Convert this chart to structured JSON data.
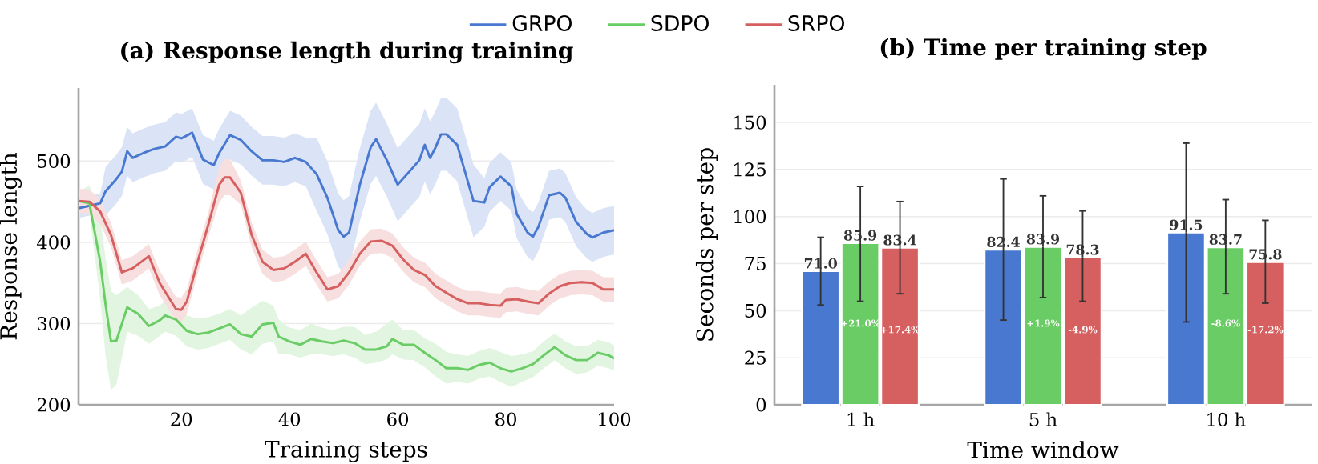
{
  "chart_data": [
    {
      "type": "line",
      "title": "(a) Response length during training",
      "xlabel": "Training steps",
      "ylabel": "Response length",
      "xlim": [
        1,
        100
      ],
      "ylim": [
        200,
        590
      ],
      "xticks": [
        20,
        40,
        60,
        80,
        100
      ],
      "yticks": [
        200,
        300,
        400,
        500
      ],
      "grid": "y",
      "legend": "top",
      "series": [
        {
          "name": "GRPO",
          "color": "#4878d0",
          "x": [
            1,
            3,
            5,
            6,
            8,
            9,
            10,
            11,
            13,
            15,
            17,
            19,
            20,
            22,
            24,
            26,
            27,
            29,
            31,
            33,
            35,
            37,
            39,
            41,
            43,
            45,
            47,
            49,
            50,
            51,
            53,
            55,
            56,
            58,
            60,
            62,
            64,
            65,
            66,
            67,
            68,
            69,
            71,
            73,
            74,
            76,
            77,
            79,
            81,
            82,
            84,
            85,
            86,
            88,
            90,
            91,
            93,
            95,
            96,
            98,
            100
          ],
          "values": [
            442,
            445,
            448,
            463,
            478,
            487,
            512,
            504,
            510,
            515,
            518,
            530,
            528,
            535,
            502,
            495,
            510,
            532,
            526,
            512,
            501,
            501,
            499,
            504,
            499,
            484,
            455,
            415,
            407,
            412,
            471,
            517,
            527,
            501,
            471,
            486,
            501,
            520,
            504,
            517,
            533,
            533,
            520,
            474,
            451,
            449,
            468,
            481,
            469,
            435,
            412,
            407,
            419,
            458,
            461,
            455,
            425,
            410,
            406,
            412,
            415
          ],
          "lower": [
            430,
            433,
            436,
            433,
            448,
            457,
            482,
            474,
            480,
            485,
            488,
            500,
            498,
            505,
            472,
            465,
            480,
            502,
            496,
            482,
            471,
            471,
            469,
            474,
            469,
            439,
            410,
            370,
            362,
            367,
            426,
            472,
            482,
            456,
            426,
            441,
            456,
            475,
            459,
            472,
            488,
            488,
            475,
            429,
            406,
            419,
            438,
            451,
            439,
            405,
            382,
            377,
            389,
            428,
            431,
            425,
            395,
            380,
            376,
            382,
            385
          ],
          "upper": [
            454,
            457,
            460,
            493,
            508,
            517,
            542,
            534,
            540,
            545,
            548,
            560,
            558,
            565,
            532,
            525,
            540,
            562,
            556,
            542,
            531,
            531,
            529,
            534,
            529,
            529,
            500,
            460,
            452,
            457,
            516,
            562,
            572,
            546,
            516,
            531,
            546,
            565,
            549,
            562,
            578,
            578,
            565,
            519,
            496,
            479,
            498,
            511,
            499,
            465,
            442,
            437,
            449,
            488,
            491,
            485,
            455,
            440,
            436,
            442,
            445
          ]
        },
        {
          "name": "SDPO",
          "color": "#6acc64",
          "x": [
            1,
            3,
            5,
            6,
            7,
            8,
            10,
            12,
            14,
            16,
            17,
            19,
            21,
            23,
            25,
            27,
            29,
            31,
            33,
            35,
            37,
            38,
            40,
            42,
            44,
            46,
            48,
            50,
            52,
            54,
            56,
            58,
            59,
            61,
            63,
            65,
            67,
            69,
            71,
            73,
            75,
            77,
            79,
            81,
            83,
            85,
            87,
            89,
            91,
            93,
            95,
            97,
            99,
            100
          ],
          "values": [
            451,
            448,
            376,
            323,
            278,
            279,
            320,
            312,
            297,
            304,
            310,
            305,
            291,
            287,
            289,
            294,
            299,
            287,
            284,
            299,
            301,
            284,
            278,
            274,
            281,
            278,
            276,
            279,
            276,
            268,
            268,
            272,
            281,
            274,
            274,
            264,
            255,
            245,
            245,
            243,
            249,
            252,
            245,
            241,
            245,
            250,
            261,
            271,
            261,
            255,
            255,
            264,
            261,
            257
          ],
          "lower": [
            440,
            437,
            330,
            260,
            218,
            225,
            290,
            285,
            275,
            285,
            290,
            285,
            272,
            268,
            270,
            275,
            280,
            268,
            262,
            275,
            278,
            262,
            262,
            258,
            262,
            262,
            260,
            262,
            258,
            250,
            252,
            256,
            262,
            256,
            255,
            246,
            235,
            226,
            228,
            226,
            232,
            235,
            228,
            222,
            228,
            234,
            245,
            255,
            245,
            238,
            240,
            248,
            245,
            242
          ],
          "upper": [
            462,
            470,
            430,
            380,
            340,
            335,
            345,
            335,
            318,
            322,
            328,
            325,
            310,
            306,
            308,
            312,
            318,
            310,
            320,
            328,
            322,
            305,
            295,
            292,
            300,
            295,
            292,
            296,
            296,
            286,
            290,
            300,
            305,
            292,
            292,
            282,
            275,
            265,
            262,
            260,
            266,
            270,
            265,
            260,
            262,
            266,
            278,
            288,
            278,
            272,
            272,
            280,
            277,
            273
          ]
        },
        {
          "name": "SRPO",
          "color": "#d65f5f",
          "x": [
            1,
            3,
            5,
            7,
            9,
            11,
            14,
            16,
            19,
            20,
            21,
            23,
            25,
            27,
            28,
            29,
            31,
            33,
            35,
            37,
            39,
            41,
            43,
            45,
            47,
            49,
            51,
            53,
            55,
            57,
            59,
            61,
            63,
            65,
            67,
            69,
            71,
            73,
            75,
            77,
            79,
            80,
            82,
            84,
            86,
            88,
            90,
            92,
            94,
            96,
            98,
            100
          ],
          "values": [
            451,
            450,
            438,
            409,
            363,
            368,
            383,
            350,
            318,
            317,
            327,
            376,
            422,
            471,
            480,
            480,
            461,
            409,
            376,
            366,
            368,
            376,
            386,
            363,
            342,
            346,
            363,
            386,
            401,
            402,
            396,
            379,
            366,
            360,
            346,
            338,
            330,
            325,
            325,
            323,
            322,
            329,
            330,
            327,
            325,
            337,
            346,
            350,
            351,
            350,
            342,
            342
          ],
          "lower": [
            436,
            435,
            423,
            394,
            348,
            353,
            368,
            335,
            303,
            302,
            312,
            361,
            407,
            449,
            458,
            458,
            446,
            394,
            361,
            351,
            353,
            361,
            371,
            348,
            327,
            331,
            348,
            371,
            386,
            387,
            381,
            364,
            351,
            345,
            331,
            323,
            315,
            310,
            310,
            308,
            307,
            314,
            315,
            312,
            310,
            322,
            331,
            335,
            336,
            335,
            327,
            327
          ],
          "upper": [
            466,
            465,
            453,
            424,
            378,
            383,
            398,
            365,
            333,
            332,
            342,
            391,
            437,
            493,
            502,
            502,
            476,
            424,
            391,
            381,
            383,
            391,
            401,
            378,
            357,
            361,
            378,
            401,
            416,
            417,
            411,
            394,
            381,
            375,
            361,
            353,
            345,
            340,
            340,
            338,
            337,
            344,
            345,
            342,
            340,
            352,
            361,
            365,
            366,
            365,
            357,
            357
          ]
        }
      ]
    },
    {
      "type": "bar",
      "title": "(b) Time per training step",
      "xlabel": "Time window",
      "ylabel": "Seconds per step",
      "categories": [
        "1 h",
        "5 h",
        "10 h"
      ],
      "ylim": [
        0,
        170
      ],
      "yticks": [
        0,
        25,
        50,
        75,
        100,
        125,
        150
      ],
      "grid": "y",
      "series": [
        {
          "color": "#4878d0",
          "values": [
            71.0,
            82.4,
            91.5
          ],
          "value_labels": [
            "71.0",
            "82.4",
            "91.5"
          ],
          "errors": [
            [
              53,
              89
            ],
            [
              45,
              120
            ],
            [
              44,
              139
            ]
          ]
        },
        {
          "color": "#6acc64",
          "values": [
            85.9,
            83.9,
            83.7
          ],
          "value_labels": [
            "85.9",
            "83.9",
            "83.7"
          ],
          "errors": [
            [
              55,
              116
            ],
            [
              57,
              111
            ],
            [
              59,
              109
            ]
          ]
        },
        {
          "color": "#d65f5f",
          "values": [
            83.4,
            78.3,
            75.8
          ],
          "value_labels": [
            "83.4",
            "78.3",
            "75.8"
          ],
          "errors": [
            [
              59,
              108
            ],
            [
              55,
              103
            ],
            [
              54,
              98
            ]
          ]
        }
      ],
      "annotations": [
        "+21.0%",
        "+17.4%",
        "+1.9%",
        "-4.9%",
        "-8.6%",
        "-17.2%"
      ]
    }
  ]
}
